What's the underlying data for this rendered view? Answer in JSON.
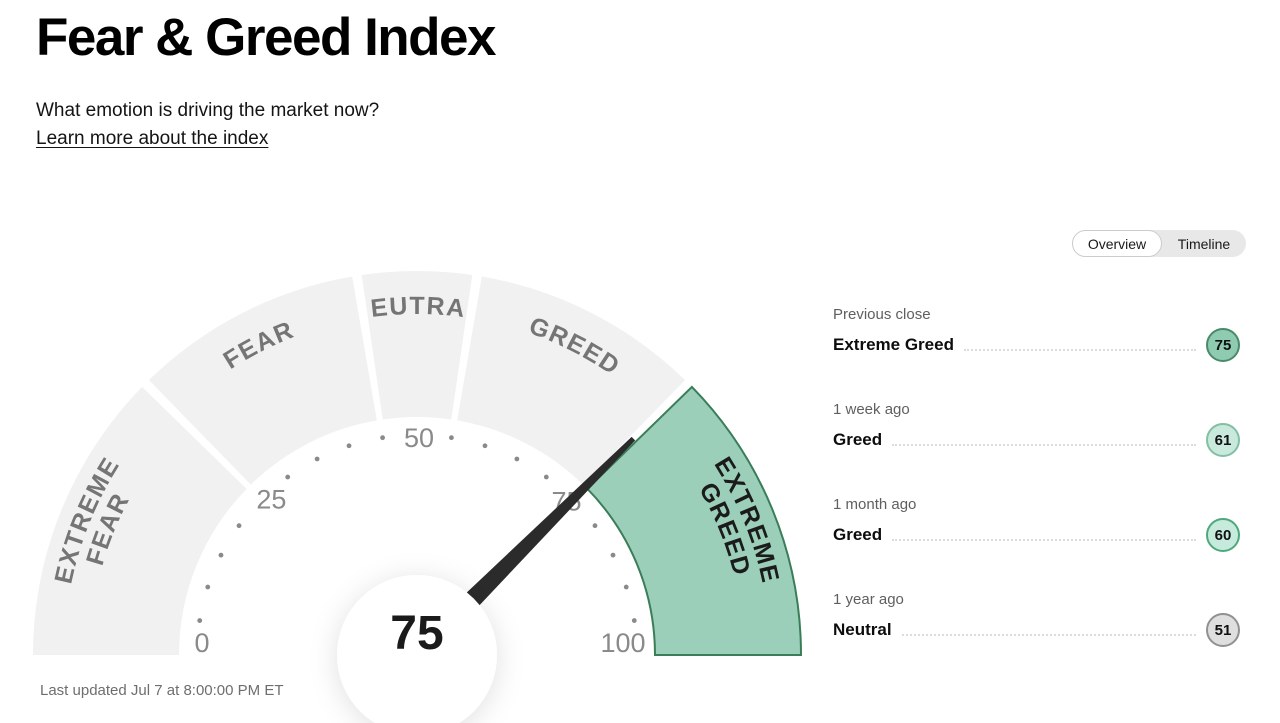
{
  "page": {
    "title": "Fear & Greed Index",
    "subtitle": "What emotion is driving the market now?",
    "learn_more": "Learn more about the index",
    "last_updated": "Last updated Jul 7 at 8:00:00 PM ET"
  },
  "view_toggle": {
    "options": [
      {
        "label": "Overview",
        "selected": true
      },
      {
        "label": "Timeline",
        "selected": false
      }
    ]
  },
  "chart_data": {
    "type": "gauge",
    "title": "Fear & Greed Index",
    "value": 75,
    "value_label": "Extreme Greed",
    "min": 0,
    "max": 100,
    "tick_labels": [
      0,
      25,
      50,
      75,
      100
    ],
    "dot_tick_step": 5,
    "needle_color": "#2b2b2b",
    "tick_color": "#8a8a8a",
    "segments": [
      {
        "label": "EXTREME FEAR",
        "lines": [
          "EXTREME",
          "FEAR"
        ],
        "start": 0,
        "end": 25,
        "fill": "#f1f1f1",
        "stroke": "none",
        "label_color": "#757575",
        "highlighted": false
      },
      {
        "label": "FEAR",
        "lines": [
          "FEAR"
        ],
        "start": 25,
        "end": 45,
        "fill": "#f1f1f1",
        "stroke": "none",
        "label_color": "#757575",
        "highlighted": false
      },
      {
        "label": "NEUTRAL",
        "lines": [
          "NEUTRAL"
        ],
        "start": 45,
        "end": 55,
        "fill": "#f1f1f1",
        "stroke": "none",
        "label_color": "#757575",
        "highlighted": false
      },
      {
        "label": "GREED",
        "lines": [
          "GREED"
        ],
        "start": 55,
        "end": 75,
        "fill": "#f1f1f1",
        "stroke": "none",
        "label_color": "#757575",
        "highlighted": false
      },
      {
        "label": "EXTREME GREED",
        "lines": [
          "EXTREME",
          "GREED"
        ],
        "start": 75,
        "end": 100,
        "fill": "#9bcfba",
        "stroke": "#3a7d58",
        "label_color": "#1b1b1b",
        "highlighted": true
      }
    ]
  },
  "history": [
    {
      "period": "Previous close",
      "label": "Extreme Greed",
      "value": 75,
      "badge_fill": "#8ecbb1",
      "badge_border": "#4a8a6b"
    },
    {
      "period": "1 week ago",
      "label": "Greed",
      "value": 61,
      "badge_fill": "#c9e9dc",
      "badge_border": "#82bfa4"
    },
    {
      "period": "1 month ago",
      "label": "Greed",
      "value": 60,
      "badge_fill": "#c6ebdc",
      "badge_border": "#4fa87d"
    },
    {
      "period": "1 year ago",
      "label": "Neutral",
      "value": 51,
      "badge_fill": "#dfdfdf",
      "badge_border": "#919191"
    }
  ]
}
